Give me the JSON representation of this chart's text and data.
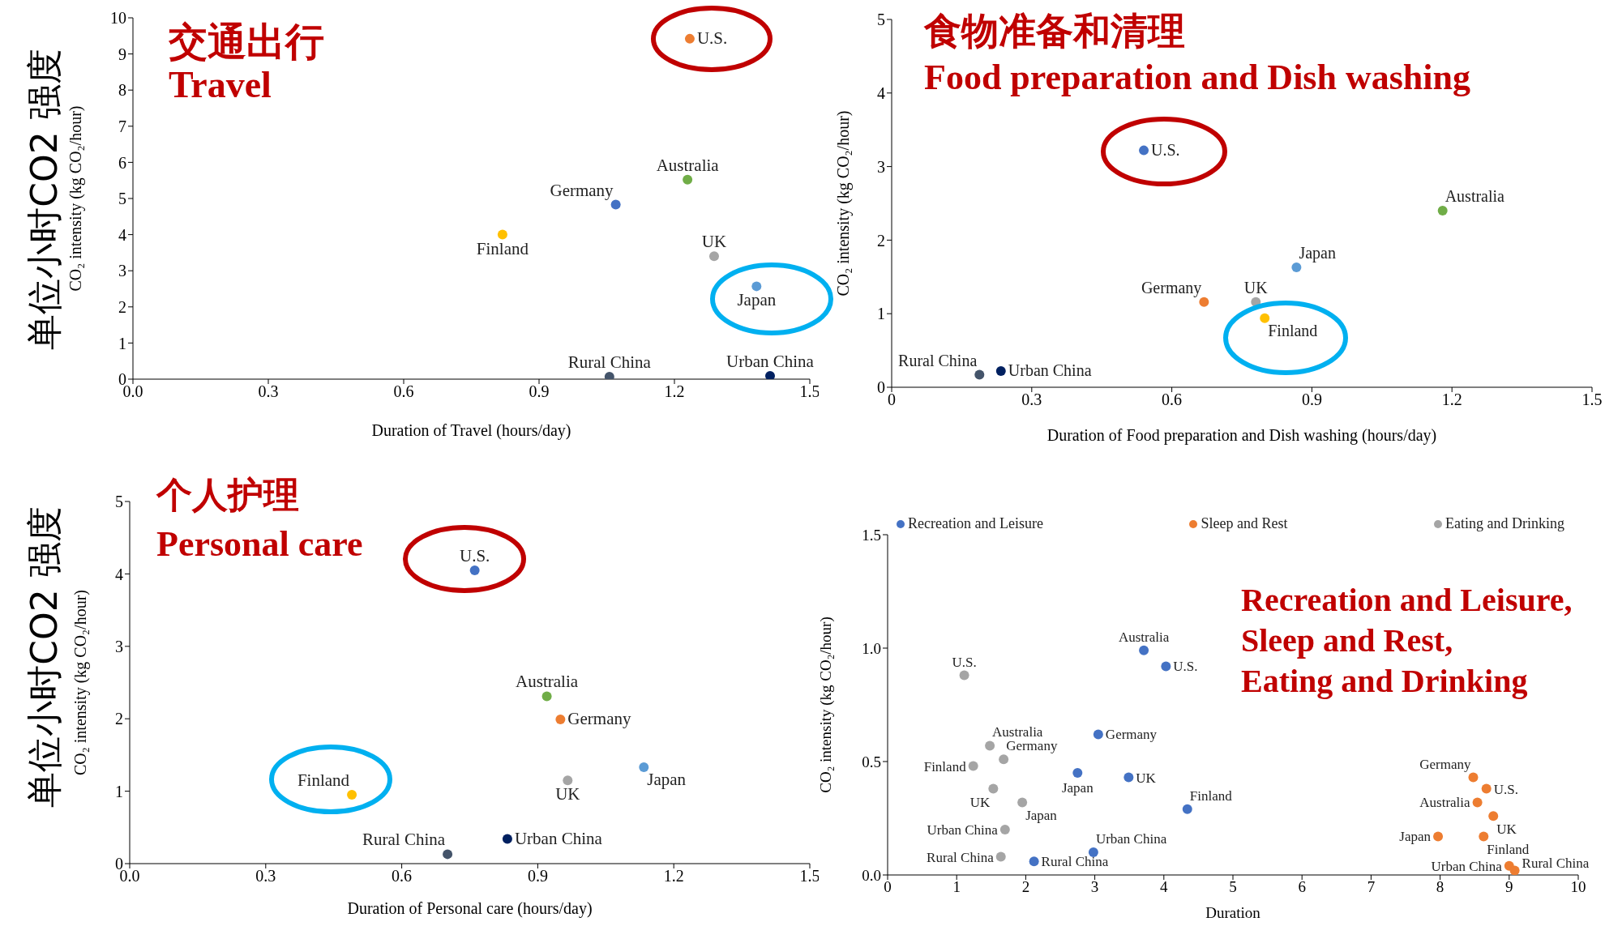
{
  "chart_data": [
    {
      "type": "scatter",
      "title": "交通出行",
      "subtitle": "Travel",
      "xlabel": "Duration of Travel (hours/day)",
      "ylabel": "CO₂ intensity (kg CO₂/hour)",
      "annotations": [
        "单位小时CO2 强度"
      ],
      "x": [
        1.234,
        1.229,
        1.07,
        0.819,
        1.288,
        1.382,
        1.056,
        1.412
      ],
      "series": [
        {
          "values": [
            9.42,
            5.52,
            4.83,
            4.0,
            3.4,
            2.57,
            0.07,
            0.09
          ],
          "colors": [
            "#ed7d31",
            "#70ad47",
            "#4472c4",
            "#ffc000",
            "#a5a5a5",
            "#5b9bd5",
            "#44546a",
            "#002060"
          ],
          "value_labels": [
            "U.S.",
            "Australia",
            "Germany",
            "Finland",
            "UK",
            "Japan",
            "Rural China",
            "Urban China"
          ]
        }
      ],
      "xlim": [
        0,
        1.5
      ],
      "xticks": [
        {
          "value": 0,
          "label": "0.0"
        },
        0.3,
        0.6,
        0.9,
        1.2,
        1.5
      ],
      "ylim": [
        0,
        10
      ],
      "yticks": [
        0,
        1,
        2,
        3,
        4,
        5,
        6,
        7,
        8,
        9,
        10
      ],
      "grid": false,
      "legend": false,
      "marker": "circle"
    },
    {
      "type": "scatter",
      "title": "食物准备和清理",
      "subtitle": "Food preparation and Dish washing",
      "xlabel": "Duration of Food preparation and Dish washing (hours/day)",
      "ylabel": "CO₂ intensity (kg CO₂/hour)",
      "x": [
        0.54,
        1.18,
        0.867,
        0.669,
        0.78,
        0.799,
        0.188,
        0.234
      ],
      "series": [
        {
          "values": [
            3.22,
            2.4,
            1.63,
            1.16,
            1.16,
            0.94,
            0.17,
            0.22
          ],
          "colors": [
            "#4472c4",
            "#70ad47",
            "#5b9bd5",
            "#ed7d31",
            "#a5a5a5",
            "#ffc000",
            "#44546a",
            "#002060"
          ],
          "value_labels": [
            "U.S.",
            "Australia",
            "Japan",
            "Germany",
            "UK",
            "Finland",
            "Rural China",
            "Urban China"
          ]
        }
      ],
      "xlim": [
        0,
        1.5
      ],
      "xticks": [
        0,
        0.3,
        0.6,
        0.9,
        1.2,
        1.5
      ],
      "ylim": [
        0,
        5
      ],
      "yticks": [
        0,
        1,
        2,
        3,
        4,
        5
      ],
      "grid": false,
      "legend": false,
      "marker": "circle"
    },
    {
      "type": "scatter",
      "title": "个人护理",
      "subtitle": "Personal care",
      "xlabel": "Duration of Personal care (hours/day)",
      "ylabel": "CO₂ intensity (kg CO₂/hour)",
      "annotations": [
        "单位小时CO2 强度"
      ],
      "x": [
        0.761,
        0.92,
        0.95,
        1.134,
        0.966,
        0.49,
        0.701,
        0.833
      ],
      "series": [
        {
          "values": [
            4.05,
            2.31,
            1.99,
            1.33,
            1.15,
            0.95,
            0.13,
            0.34
          ],
          "colors": [
            "#4472c4",
            "#70ad47",
            "#ed7d31",
            "#5b9bd5",
            "#a5a5a5",
            "#ffc000",
            "#44546a",
            "#002060"
          ],
          "value_labels": [
            "U.S.",
            "Australia",
            "Germany",
            "Japan",
            "UK",
            "Finland",
            "Rural China",
            "Urban China"
          ]
        }
      ],
      "xlim": [
        0,
        1.5
      ],
      "xticks": [
        {
          "value": 0,
          "label": "0.0"
        },
        0.3,
        0.6,
        0.9,
        1.2,
        1.5
      ],
      "ylim": [
        0,
        5
      ],
      "yticks": [
        0,
        1,
        2,
        3,
        4,
        5
      ],
      "grid": false,
      "legend": false,
      "marker": "circle"
    },
    {
      "type": "scatter",
      "title": "Recreation and Leisure,\nSleep and Rest,\nEating and Drinking",
      "xlabel": "Duration",
      "ylabel": "CO₂ intensity (kg CO₂/hour)",
      "series": [
        {
          "name": "Recreation and Leisure",
          "color": "#4472c4",
          "x": [
            3.71,
            4.03,
            3.05,
            2.75,
            3.49,
            4.34,
            2.98,
            2.12
          ],
          "values": [
            0.99,
            0.92,
            0.62,
            0.45,
            0.43,
            0.29,
            0.1,
            0.06
          ],
          "value_labels": [
            "Australia",
            "U.S.",
            "Germany",
            "Japan",
            "UK",
            "Finland",
            "Urban China",
            "Rural China"
          ]
        },
        {
          "name": "Sleep and Rest",
          "color": "#ed7d31",
          "x": [
            8.48,
            8.67,
            8.54,
            8.77,
            7.97,
            8.63,
            9.0,
            9.08
          ],
          "values": [
            0.43,
            0.38,
            0.32,
            0.26,
            0.17,
            0.17,
            0.04,
            0.02
          ],
          "value_labels": [
            "Germany",
            "U.S.",
            "Australia",
            "UK",
            "Japan",
            "Finland",
            "Urban China",
            "Rural China"
          ]
        },
        {
          "name": "Eating and Drinking",
          "color": "#a5a5a5",
          "x": [
            1.11,
            1.48,
            1.68,
            1.24,
            1.53,
            1.95,
            1.7,
            1.64
          ],
          "values": [
            0.88,
            0.57,
            0.51,
            0.48,
            0.38,
            0.32,
            0.2,
            0.08
          ],
          "value_labels": [
            "U.S.",
            "Australia",
            "Germany",
            "Finland",
            "UK",
            "Japan",
            "Urban China",
            "Rural China"
          ]
        }
      ],
      "xlim": [
        0,
        10
      ],
      "xticks": [
        0,
        1,
        2,
        3,
        4,
        5,
        6,
        7,
        8,
        9,
        10
      ],
      "ylim": [
        0,
        1.5
      ],
      "yticks": [
        {
          "value": 0,
          "label": "0.0"
        },
        0.5,
        {
          "value": 1,
          "label": "1.0"
        },
        1.5
      ],
      "grid": false,
      "legend": "top",
      "marker": "circle"
    }
  ]
}
